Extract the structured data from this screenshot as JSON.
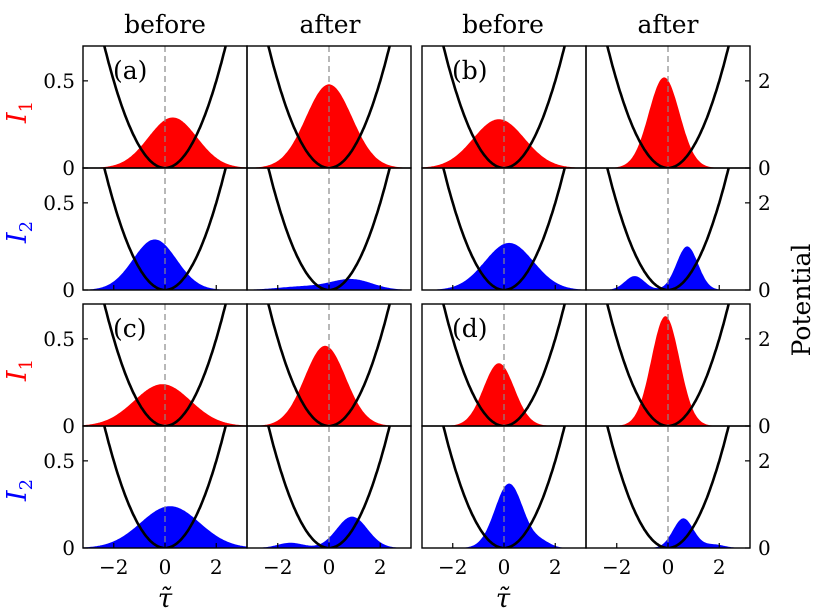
{
  "figure": {
    "column_titles": [
      "before",
      "after",
      "before",
      "after"
    ],
    "y_label_I1": "I",
    "y_label_I1_sub": "1",
    "y_label_I2": "I",
    "y_label_I2_sub": "2",
    "right_label": "Potential",
    "x_label": "τ̃"
  },
  "chart_data": {
    "type": "area",
    "xlim": [
      -3.2,
      3.2
    ],
    "xticks": [
      -2,
      0,
      2
    ],
    "intensity_ylim": [
      0,
      0.7
    ],
    "intensity_yticks": [
      "0",
      "0.5"
    ],
    "potential_ylim": [
      0,
      2.8
    ],
    "potential_yticks": [
      "0",
      "2"
    ],
    "potential": "0.5*x^2",
    "colors": {
      "I1": "#ff0000",
      "I2": "#0000ff",
      "potential": "#000000",
      "center_line": "#888888"
    },
    "panels": [
      {
        "label": "(a)",
        "I1": {
          "before": [
            {
              "amp": 0.29,
              "center": 0.3,
              "width": 0.95
            }
          ],
          "after": [
            {
              "amp": 0.48,
              "center": 0.0,
              "width": 0.9
            }
          ]
        },
        "I2": {
          "before": [
            {
              "amp": 0.29,
              "center": -0.4,
              "width": 0.85
            }
          ],
          "after": [
            {
              "amp": 0.06,
              "center": 0.9,
              "width": 0.8
            },
            {
              "amp": 0.02,
              "center": -1.0,
              "width": 1.0
            }
          ]
        }
      },
      {
        "label": "(b)",
        "I1": {
          "before": [
            {
              "amp": 0.28,
              "center": -0.2,
              "width": 1.0
            }
          ],
          "after": [
            {
              "amp": 0.52,
              "center": -0.15,
              "width": 0.6
            }
          ]
        },
        "I2": {
          "before": [
            {
              "amp": 0.27,
              "center": 0.2,
              "width": 0.95
            }
          ],
          "after": [
            {
              "amp": 0.25,
              "center": 0.75,
              "width": 0.42
            },
            {
              "amp": 0.08,
              "center": -1.3,
              "width": 0.38
            }
          ]
        }
      },
      {
        "label": "(c)",
        "I1": {
          "before": [
            {
              "amp": 0.24,
              "center": -0.1,
              "width": 1.1
            }
          ],
          "after": [
            {
              "amp": 0.46,
              "center": -0.15,
              "width": 0.8
            }
          ]
        },
        "I2": {
          "before": [
            {
              "amp": 0.24,
              "center": 0.2,
              "width": 1.15
            }
          ],
          "after": [
            {
              "amp": 0.18,
              "center": 0.9,
              "width": 0.6
            },
            {
              "amp": 0.03,
              "center": -1.5,
              "width": 0.5
            }
          ]
        }
      },
      {
        "label": "(d)",
        "I1": {
          "before": [
            {
              "amp": 0.36,
              "center": -0.2,
              "width": 0.6
            }
          ],
          "after": [
            {
              "amp": 0.63,
              "center": -0.1,
              "width": 0.55
            }
          ]
        },
        "I2": {
          "before": [
            {
              "amp": 0.37,
              "center": 0.2,
              "width": 0.55
            },
            {
              "amp": 0.03,
              "center": 1.5,
              "width": 0.35
            }
          ],
          "after": [
            {
              "amp": 0.17,
              "center": 0.6,
              "width": 0.4
            },
            {
              "amp": 0.02,
              "center": 1.8,
              "width": 0.4
            }
          ]
        }
      }
    ]
  }
}
